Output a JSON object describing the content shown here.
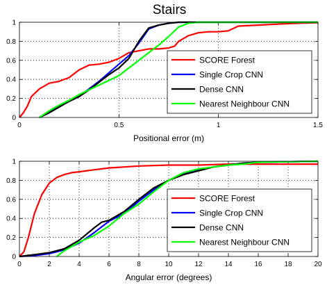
{
  "title": "Stairs",
  "chart_data": [
    {
      "type": "line",
      "xlabel": "Positional error (m)",
      "ylabel": "",
      "xlim": [
        0,
        1.5
      ],
      "ylim": [
        0,
        1
      ],
      "xticks": [
        "0",
        "0.5",
        "1",
        "1.5"
      ],
      "yticks": [
        "0",
        "0.2",
        "0.4",
        "0.6",
        "0.8",
        "1"
      ],
      "grid": true,
      "legend_position": "bottom-right",
      "series": [
        {
          "name": "SCORE Forest",
          "color": "#ff0000",
          "x": [
            0,
            0.02,
            0.04,
            0.06,
            0.1,
            0.15,
            0.2,
            0.25,
            0.3,
            0.35,
            0.4,
            0.45,
            0.5,
            0.55,
            0.6,
            0.65,
            0.7,
            0.75,
            0.78,
            0.8,
            0.85,
            0.9,
            0.95,
            1.0,
            1.05,
            1.1,
            1.2,
            1.3,
            1.4,
            1.5
          ],
          "y": [
            0,
            0.05,
            0.12,
            0.22,
            0.3,
            0.36,
            0.38,
            0.42,
            0.5,
            0.55,
            0.56,
            0.58,
            0.62,
            0.68,
            0.7,
            0.72,
            0.72,
            0.73,
            0.75,
            0.8,
            0.86,
            0.89,
            0.9,
            0.9,
            0.91,
            0.96,
            0.97,
            0.98,
            0.99,
            0.995
          ]
        },
        {
          "name": "Single Crop CNN",
          "color": "#0000ff",
          "x": [
            0.1,
            0.15,
            0.2,
            0.25,
            0.3,
            0.35,
            0.4,
            0.45,
            0.5,
            0.55,
            0.6,
            0.65,
            0.7,
            0.75,
            0.8,
            0.9,
            1.0,
            1.5
          ],
          "y": [
            0,
            0.06,
            0.12,
            0.17,
            0.22,
            0.3,
            0.38,
            0.47,
            0.56,
            0.65,
            0.78,
            0.93,
            0.97,
            0.99,
            1,
            1,
            1,
            1
          ]
        },
        {
          "name": "Dense CNN",
          "color": "#000000",
          "x": [
            0.1,
            0.15,
            0.2,
            0.25,
            0.3,
            0.35,
            0.4,
            0.45,
            0.5,
            0.55,
            0.6,
            0.65,
            0.7,
            0.75,
            0.8,
            0.9,
            1.0,
            1.5
          ],
          "y": [
            0,
            0.05,
            0.11,
            0.17,
            0.22,
            0.29,
            0.37,
            0.45,
            0.52,
            0.62,
            0.8,
            0.94,
            0.97,
            0.99,
            1,
            1,
            1,
            1
          ]
        },
        {
          "name": "Nearest Neighbour CNN",
          "color": "#00ff00",
          "x": [
            0.1,
            0.15,
            0.2,
            0.25,
            0.3,
            0.35,
            0.4,
            0.45,
            0.5,
            0.55,
            0.6,
            0.65,
            0.7,
            0.75,
            0.8,
            0.85,
            0.9,
            1.0,
            1.5
          ],
          "y": [
            0,
            0.07,
            0.13,
            0.18,
            0.24,
            0.29,
            0.34,
            0.39,
            0.44,
            0.52,
            0.6,
            0.68,
            0.76,
            0.85,
            0.95,
            0.99,
            1,
            1,
            1
          ]
        }
      ]
    },
    {
      "type": "line",
      "xlabel": "Angular error (degrees)",
      "ylabel": "",
      "xlim": [
        0,
        20
      ],
      "ylim": [
        0,
        1
      ],
      "xticks": [
        "0",
        "2",
        "4",
        "6",
        "8",
        "10",
        "12",
        "14",
        "16",
        "18",
        "20"
      ],
      "yticks": [
        "0",
        "0.2",
        "0.4",
        "0.6",
        "0.8",
        "1"
      ],
      "grid": true,
      "legend_position": "bottom-right",
      "series": [
        {
          "name": "SCORE Forest",
          "color": "#ff0000",
          "x": [
            0,
            0.3,
            0.6,
            1.0,
            1.5,
            2.0,
            2.5,
            3.0,
            3.5,
            4.0,
            5.0,
            6.0,
            8.0,
            10.0,
            12.0,
            14.0,
            16.0,
            18.0,
            20.0
          ],
          "y": [
            0,
            0.05,
            0.2,
            0.45,
            0.65,
            0.77,
            0.83,
            0.86,
            0.88,
            0.89,
            0.91,
            0.93,
            0.95,
            0.96,
            0.96,
            0.97,
            0.97,
            0.97,
            0.97
          ]
        },
        {
          "name": "Single Crop CNN",
          "color": "#0000ff",
          "x": [
            0,
            1.0,
            2.0,
            3.0,
            4.0,
            5.0,
            6.0,
            7.0,
            8.0,
            9.0,
            10.0,
            11.0,
            12.0,
            13.0,
            14.0,
            15.0,
            16.0,
            20.0
          ],
          "y": [
            0,
            0.01,
            0.03,
            0.07,
            0.14,
            0.25,
            0.37,
            0.45,
            0.58,
            0.7,
            0.8,
            0.87,
            0.91,
            0.94,
            0.96,
            0.98,
            0.99,
            1
          ]
        },
        {
          "name": "Dense CNN",
          "color": "#000000",
          "x": [
            0,
            1.0,
            2.0,
            3.0,
            4.0,
            5.0,
            5.5,
            6.0,
            7.0,
            8.0,
            9.0,
            10.0,
            11.0,
            12.0,
            13.0,
            14.0,
            15.0,
            16.0,
            20.0
          ],
          "y": [
            0,
            0.02,
            0.04,
            0.08,
            0.17,
            0.3,
            0.36,
            0.38,
            0.47,
            0.6,
            0.72,
            0.8,
            0.86,
            0.9,
            0.94,
            0.96,
            0.98,
            0.99,
            1
          ]
        },
        {
          "name": "Nearest Neighbour CNN",
          "color": "#00ff00",
          "x": [
            2.5,
            3.0,
            4.0,
            5.0,
            6.0,
            7.0,
            8.0,
            9.0,
            10.0,
            11.0,
            12.0,
            13.0,
            14.0,
            15.0,
            16.0,
            20.0
          ],
          "y": [
            0,
            0.06,
            0.15,
            0.22,
            0.32,
            0.45,
            0.55,
            0.68,
            0.8,
            0.88,
            0.92,
            0.94,
            0.96,
            0.97,
            0.99,
            1
          ]
        }
      ]
    }
  ]
}
